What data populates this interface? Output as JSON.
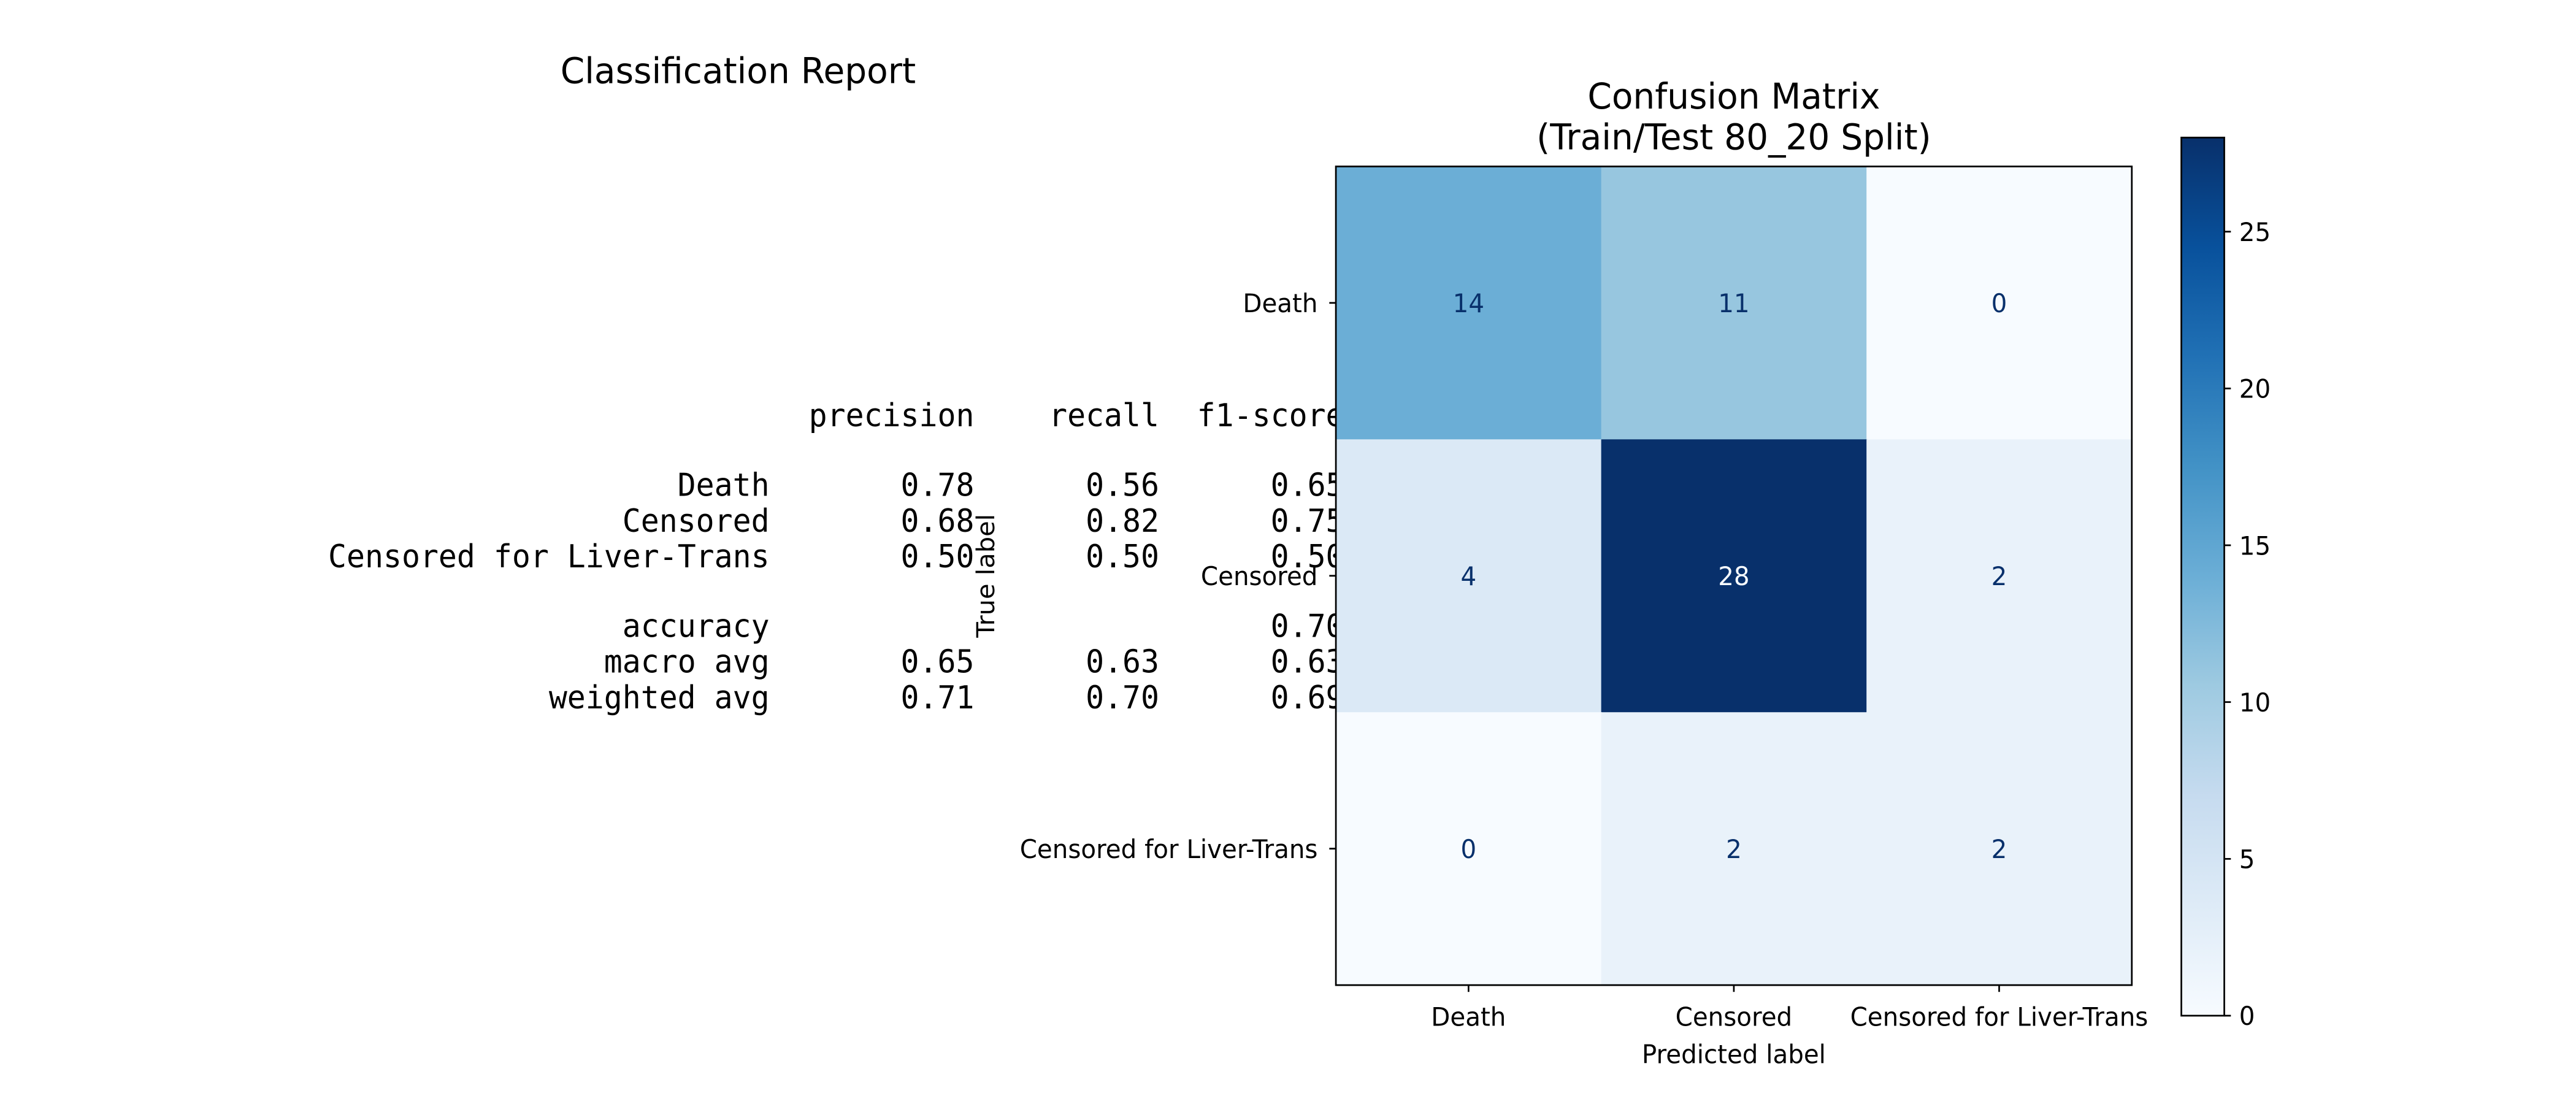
{
  "report": {
    "title": "Classification Report",
    "header": [
      "precision",
      "recall",
      "f1-score"
    ],
    "rows": [
      {
        "label": "Death",
        "values": [
          "0.78",
          "0.56",
          "0.65"
        ]
      },
      {
        "label": "Censored",
        "values": [
          "0.68",
          "0.82",
          "0.75"
        ]
      },
      {
        "label": "Censored for Liver-Trans",
        "values": [
          "0.50",
          "0.50",
          "0.50"
        ]
      },
      {
        "label": "accuracy",
        "values": [
          "",
          "",
          "0.70"
        ]
      },
      {
        "label": "macro avg",
        "values": [
          "0.65",
          "0.63",
          "0.63"
        ]
      },
      {
        "label": "weighted avg",
        "values": [
          "0.71",
          "0.70",
          "0.69"
        ]
      }
    ]
  },
  "chart_data": {
    "type": "heatmap",
    "title": "Confusion Matrix\n(Train/Test 80_20 Split)",
    "xlabel": "Predicted label",
    "ylabel": "True label",
    "x_categories": [
      "Death",
      "Censored",
      "Censored for Liver-Trans"
    ],
    "y_categories": [
      "Death",
      "Censored",
      "Censored for Liver-Trans"
    ],
    "values": [
      [
        14,
        11,
        0
      ],
      [
        4,
        28,
        2
      ],
      [
        0,
        2,
        2
      ]
    ],
    "colormap": "Blues",
    "colorbar": {
      "min": 0,
      "max": 28,
      "ticks": [
        0,
        5,
        10,
        15,
        20,
        25
      ]
    },
    "colors": {
      "low": "#f7fbff",
      "high": "#08306b",
      "text_light": "#f7fbff",
      "text_dark": "#08306b"
    }
  }
}
